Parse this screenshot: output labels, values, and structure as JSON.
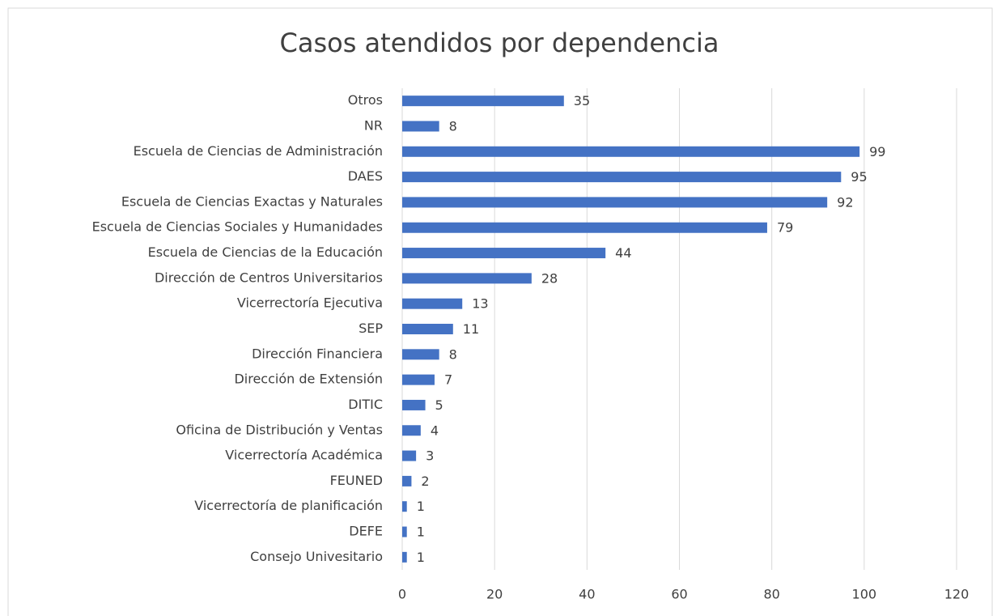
{
  "chart_data": {
    "type": "bar",
    "orientation": "horizontal",
    "title": "Casos atendidos por dependencia",
    "categories": [
      "Otros",
      "NR",
      "Escuela de Ciencias de Administración",
      "DAES",
      "Escuela de Ciencias Exactas y Naturales",
      "Escuela de Ciencias Sociales y Humanidades",
      "Escuela de Ciencias de la Educación",
      "Dirección de Centros Universitarios",
      "Vicerrectoría Ejecutiva",
      "SEP",
      "Dirección Financiera",
      "Dirección de Extensión",
      "DITIC",
      "Oficina de Distribución y Ventas",
      "Vicerrectoría Académica",
      "FEUNED",
      "Vicerrectoría de planificación",
      "DEFE",
      "Consejo Univesitario"
    ],
    "values": [
      35,
      8,
      99,
      95,
      92,
      79,
      44,
      28,
      13,
      11,
      8,
      7,
      5,
      4,
      3,
      2,
      1,
      1,
      1
    ],
    "color": "#4472c4",
    "xlim": [
      0,
      120
    ],
    "xticks": [
      0,
      20,
      40,
      60,
      80,
      100,
      120
    ],
    "grid": true
  }
}
